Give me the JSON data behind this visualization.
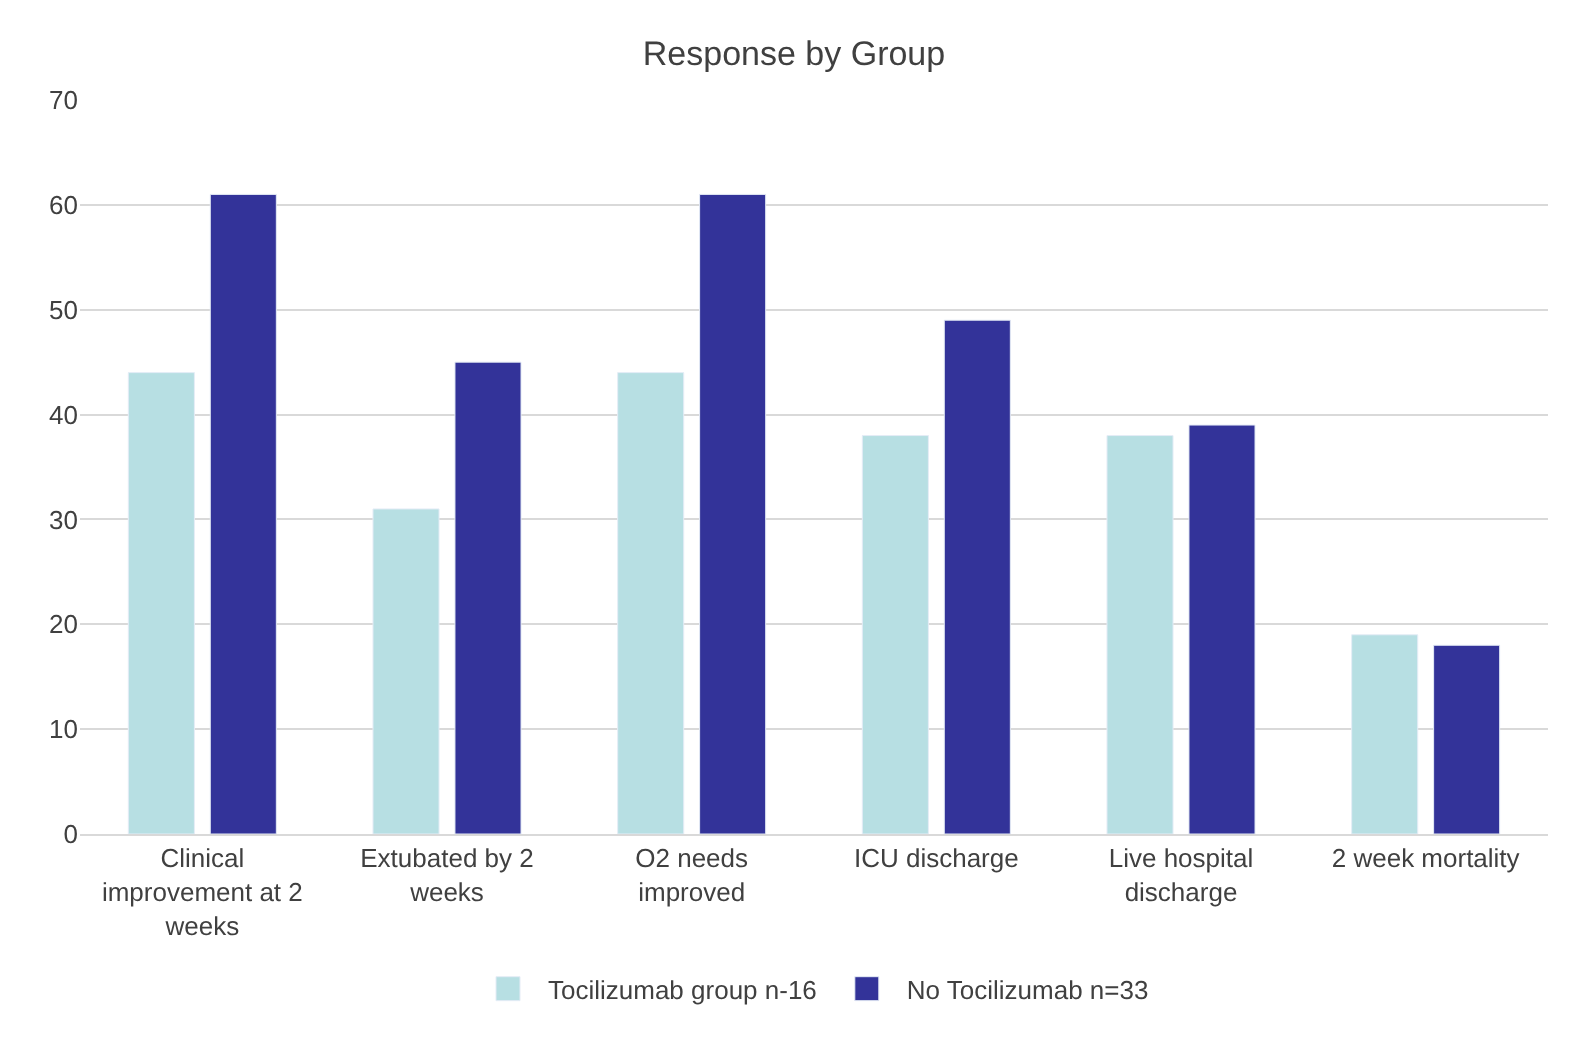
{
  "chart_data": {
    "type": "bar",
    "title": "Response by Group",
    "categories": [
      "Clinical improvement at 2 weeks",
      "Extubated by 2 weeks",
      "O2 needs improved",
      "ICU discharge",
      "Live hospital discharge",
      "2 week mortality"
    ],
    "series": [
      {
        "name": "Tocilizumab group n-16",
        "color": "#b7dfe3",
        "values": [
          44,
          31,
          44,
          38,
          38,
          19
        ]
      },
      {
        "name": "No Tocilizumab n=33",
        "color": "#333399",
        "values": [
          61,
          45,
          61,
          49,
          39,
          18
        ]
      }
    ],
    "ylim": [
      0,
      70
    ],
    "yticks": [
      0,
      10,
      20,
      30,
      40,
      50,
      60,
      70
    ],
    "grid": "y",
    "legend": "bottom"
  }
}
